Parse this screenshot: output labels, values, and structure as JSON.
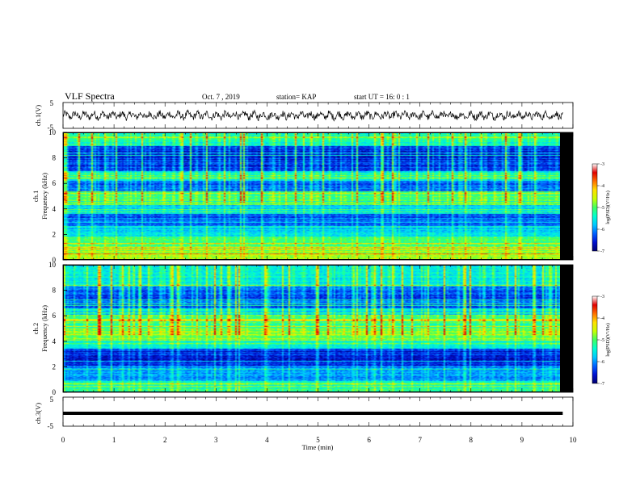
{
  "header": {
    "title": "VLF Spectra",
    "date": "Oct. 7  , 2019",
    "station": "station= KAP",
    "start": "start  UT  =   16: 0  : 1"
  },
  "colors": {
    "colormap": [
      "#00006e",
      "#0010d0",
      "#0060ff",
      "#00c8ff",
      "#00ffd0",
      "#40ff60",
      "#c8ff00",
      "#ffe000",
      "#ff7000",
      "#e00000",
      "#ffffff"
    ],
    "waveform": "#000000"
  },
  "chart_data": [
    {
      "type": "line",
      "name_label": "ch.1(V)",
      "ylabel": "ch.1(V)",
      "ylim": [
        -5,
        5
      ],
      "yticks": [
        "5",
        "-5"
      ],
      "xlim": [
        0,
        10
      ],
      "description_level": "noisy waveform oscillating about 0 V with amplitude of roughly ±2 V"
    },
    {
      "type": "heatmap",
      "name_label": "ch.1",
      "ylabel": "ch.1 Frequency (kHz)",
      "ylim": [
        0,
        10
      ],
      "yticks": [
        "0",
        "2",
        "4",
        "6",
        "8",
        "10"
      ],
      "xlim": [
        0,
        10.0
      ],
      "colorbar": {
        "label": "log(PSD)(V²/Hz)",
        "range": [
          -7,
          -3
        ],
        "ticks": [
          "-3",
          "-4",
          "-5",
          "-6",
          "-7"
        ]
      },
      "bands_khz": [
        {
          "from": 0.0,
          "to": 0.8,
          "level": -4.6
        },
        {
          "from": 0.8,
          "to": 1.8,
          "level": -4.9
        },
        {
          "from": 1.8,
          "to": 2.6,
          "level": -5.6
        },
        {
          "from": 2.6,
          "to": 3.6,
          "level": -6.2
        },
        {
          "from": 3.6,
          "to": 4.6,
          "level": -5.6
        },
        {
          "from": 4.6,
          "to": 5.4,
          "level": -5.0
        },
        {
          "from": 5.4,
          "to": 6.2,
          "level": -6.2
        },
        {
          "from": 6.2,
          "to": 7.0,
          "level": -5.4
        },
        {
          "from": 7.0,
          "to": 9.0,
          "level": -6.5
        },
        {
          "from": 9.0,
          "to": 10.0,
          "level": -5.3
        }
      ]
    },
    {
      "type": "heatmap",
      "name_label": "ch.2",
      "ylabel": "ch.2 Frequency (kHz)",
      "ylim": [
        0,
        10
      ],
      "yticks": [
        "0",
        "2",
        "4",
        "6",
        "8",
        "10"
      ],
      "xlim": [
        0,
        10.0
      ],
      "colorbar": {
        "label": "log(PSD)(V²/Hz)",
        "range": [
          -7,
          -3
        ],
        "ticks": [
          "-3",
          "-4",
          "-5",
          "-6",
          "-7"
        ]
      },
      "bands_khz": [
        {
          "from": 0.0,
          "to": 0.8,
          "level": -5.2
        },
        {
          "from": 0.8,
          "to": 2.0,
          "level": -6.0
        },
        {
          "from": 2.0,
          "to": 3.4,
          "level": -6.5
        },
        {
          "from": 3.4,
          "to": 4.0,
          "level": -5.4
        },
        {
          "from": 4.0,
          "to": 5.0,
          "level": -4.7
        },
        {
          "from": 5.0,
          "to": 6.0,
          "level": -5.1
        },
        {
          "from": 6.0,
          "to": 6.6,
          "level": -5.6
        },
        {
          "from": 6.6,
          "to": 8.4,
          "level": -6.3
        },
        {
          "from": 8.4,
          "to": 10.0,
          "level": -5.5
        }
      ]
    },
    {
      "type": "line",
      "name_label": "ch.3(V)",
      "ylabel": "ch.3(V)",
      "ylim": [
        -5,
        5
      ],
      "yticks": [
        "5",
        "-5"
      ],
      "xlim": [
        0,
        10
      ],
      "x": [
        0,
        9.8
      ],
      "y": [
        0,
        0
      ]
    }
  ],
  "xaxis": {
    "label": "Time  (min)",
    "ticks": [
      "0",
      "1",
      "2",
      "3",
      "4",
      "5",
      "6",
      "7",
      "8",
      "9",
      "10"
    ]
  }
}
